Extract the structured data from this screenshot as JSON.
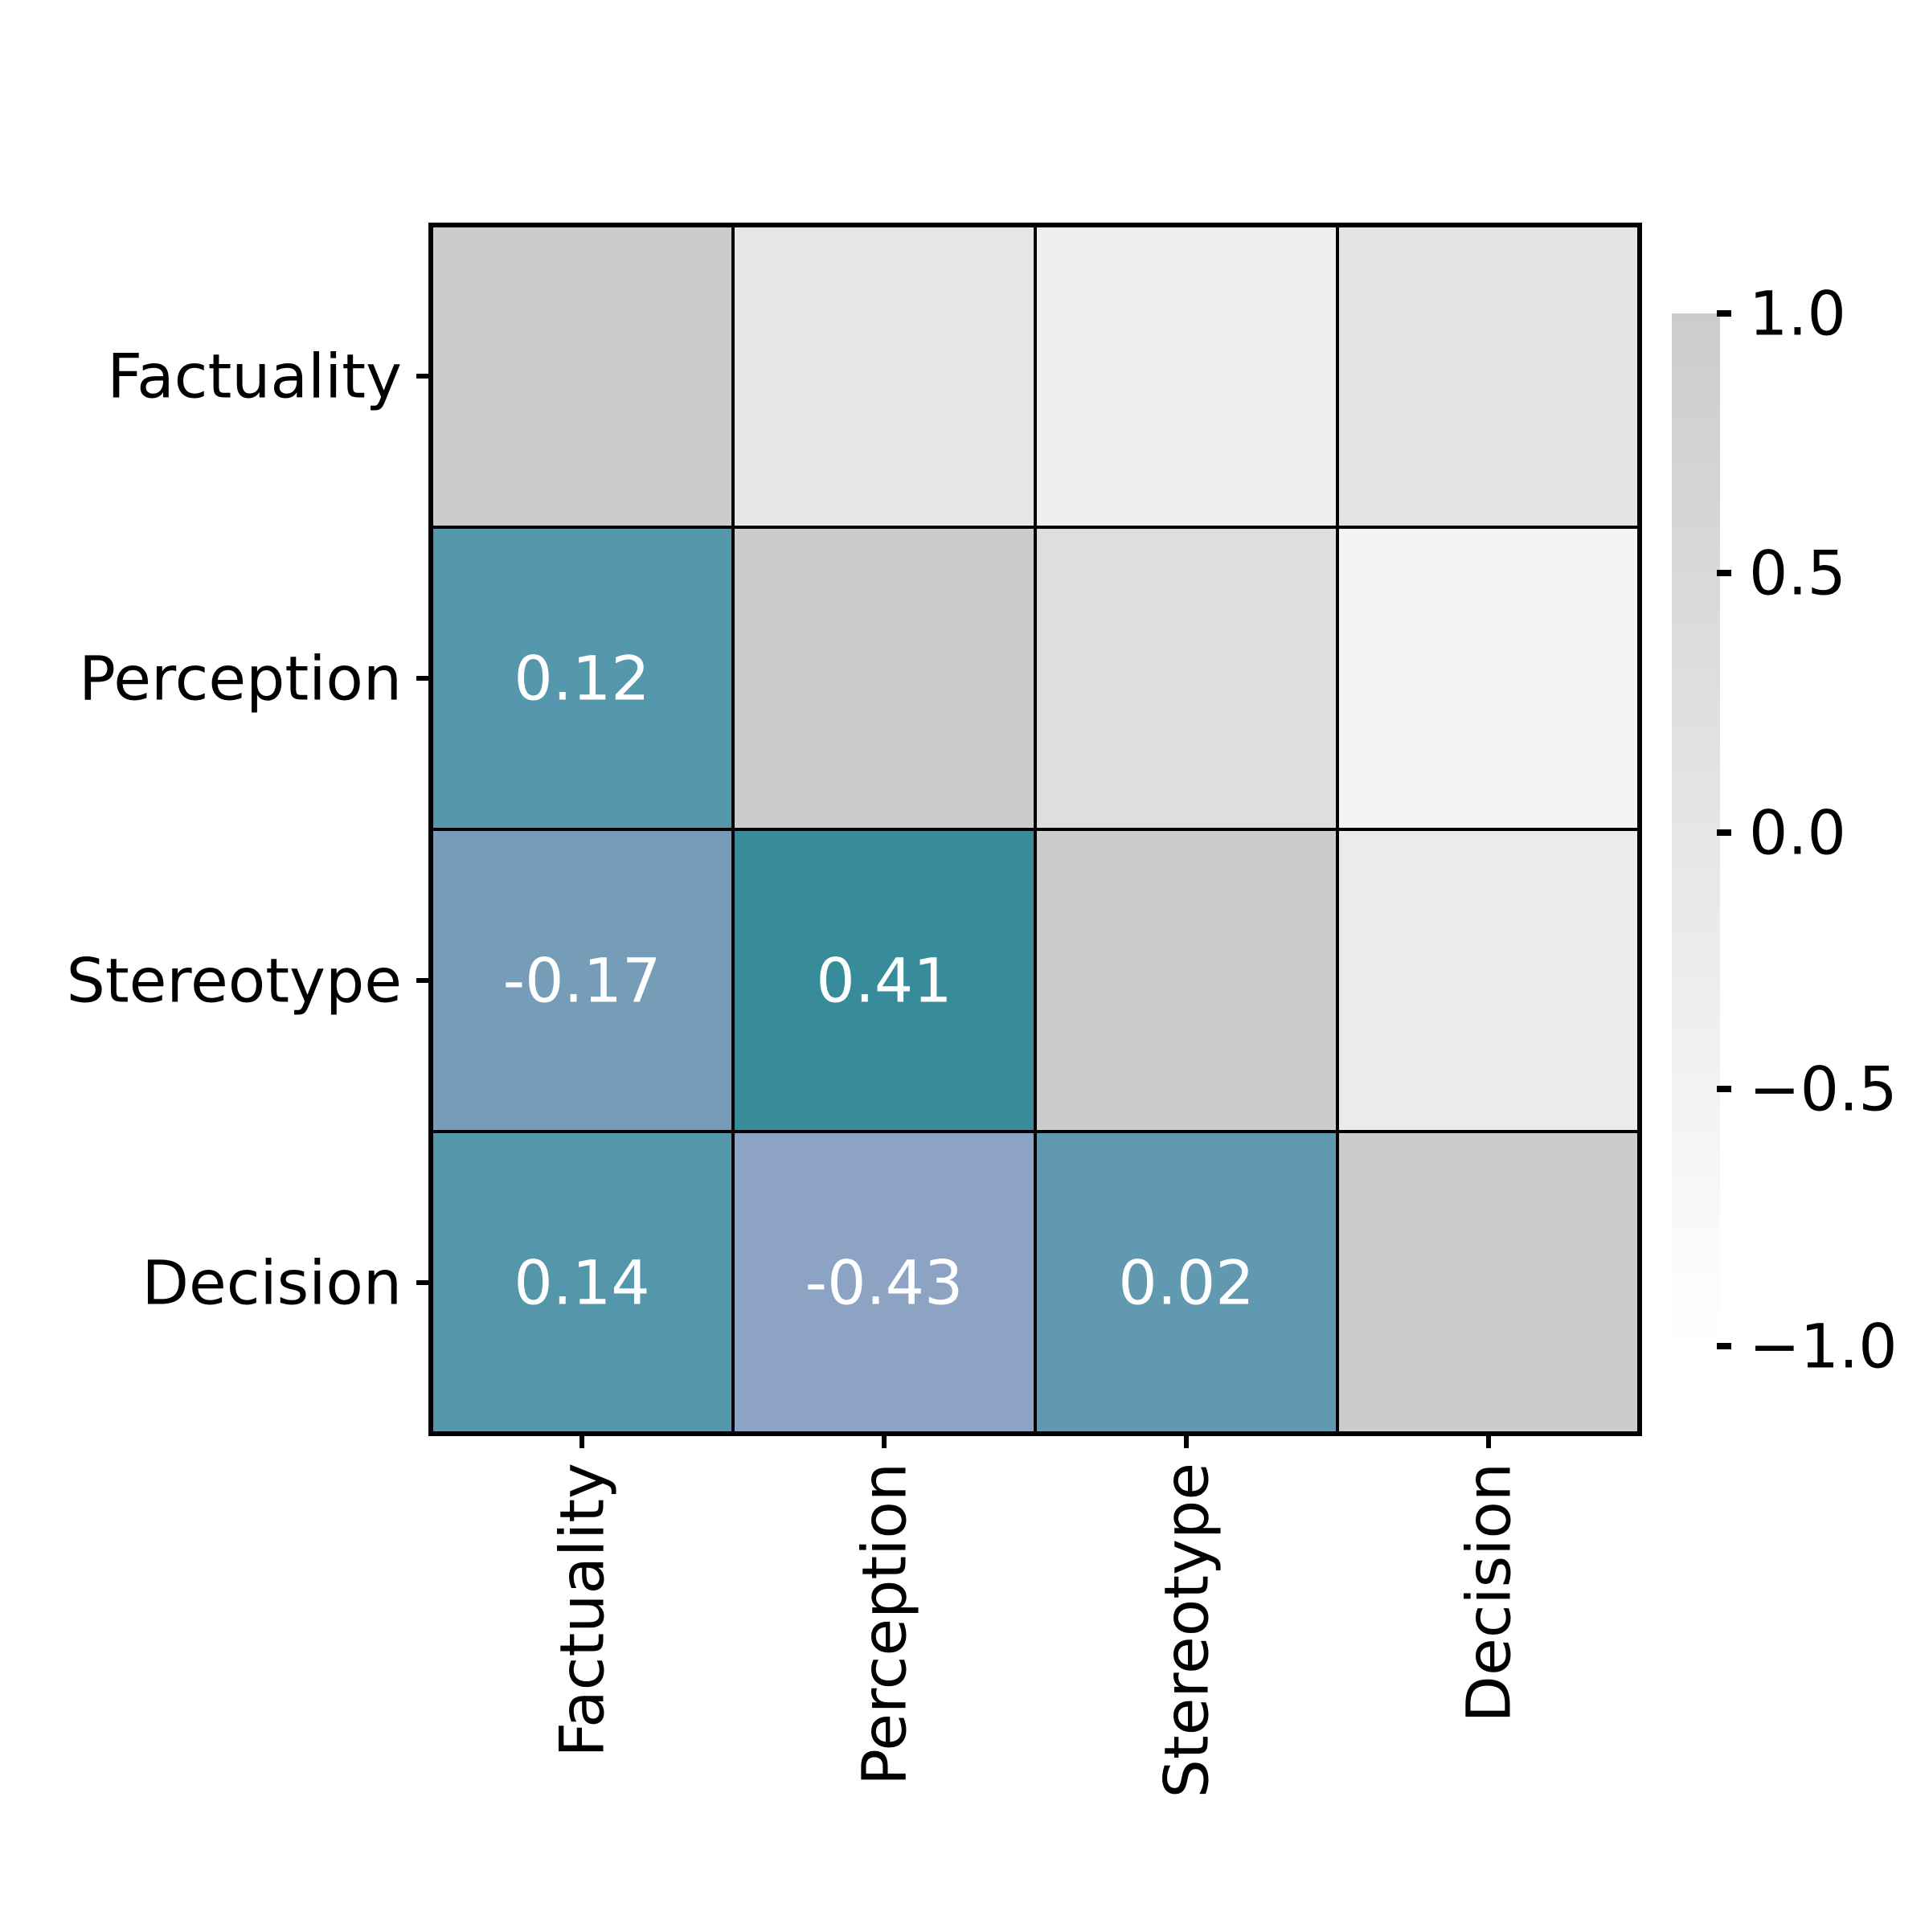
{
  "chart_data": {
    "type": "heatmap",
    "title": "",
    "xlabel": "",
    "ylabel": "",
    "row_labels": [
      "Factuality",
      "Perception",
      "Stereotype",
      "Decision"
    ],
    "col_labels": [
      "Factuality",
      "Perception",
      "Stereotype",
      "Decision"
    ],
    "lower_triangle": [
      {
        "row": "Perception",
        "col": "Factuality",
        "value": 0.12,
        "label": "0.12",
        "color": "#5597ac"
      },
      {
        "row": "Stereotype",
        "col": "Factuality",
        "value": -0.17,
        "label": "-0.17",
        "color": "#769db8"
      },
      {
        "row": "Stereotype",
        "col": "Perception",
        "value": 0.41,
        "label": "0.41",
        "color": "#388b9b"
      },
      {
        "row": "Decision",
        "col": "Factuality",
        "value": 0.14,
        "label": "0.14",
        "color": "#5497ab"
      },
      {
        "row": "Decision",
        "col": "Perception",
        "value": -0.43,
        "label": "-0.43",
        "color": "#8ca3c3"
      },
      {
        "row": "Decision",
        "col": "Stereotype",
        "value": 0.02,
        "label": "0.02",
        "color": "#6099b0"
      }
    ],
    "diagonal_color": "#cccccc",
    "upper_triangle_colors": [
      {
        "row": "Factuality",
        "col": "Perception",
        "color": "#e6e6e6"
      },
      {
        "row": "Factuality",
        "col": "Stereotype",
        "color": "#efefef"
      },
      {
        "row": "Factuality",
        "col": "Decision",
        "color": "#e4e4e4"
      },
      {
        "row": "Perception",
        "col": "Stereotype",
        "color": "#dedede"
      },
      {
        "row": "Perception",
        "col": "Decision",
        "color": "#f4f4f4"
      },
      {
        "row": "Stereotype",
        "col": "Decision",
        "color": "#ebebeb"
      }
    ],
    "colorbar": {
      "range": [
        -1.0,
        1.0
      ],
      "ticks": [
        1.0,
        0.5,
        0.0,
        -0.5,
        -1.0
      ],
      "tick_labels": [
        "1.0",
        "0.5",
        "0.0",
        "−0.5",
        "−1.0"
      ],
      "color_top": "#cccccc",
      "color_bottom": "#ffffff"
    },
    "annotation_text_color": "#ffffff",
    "grid_line_color": "#000000"
  }
}
